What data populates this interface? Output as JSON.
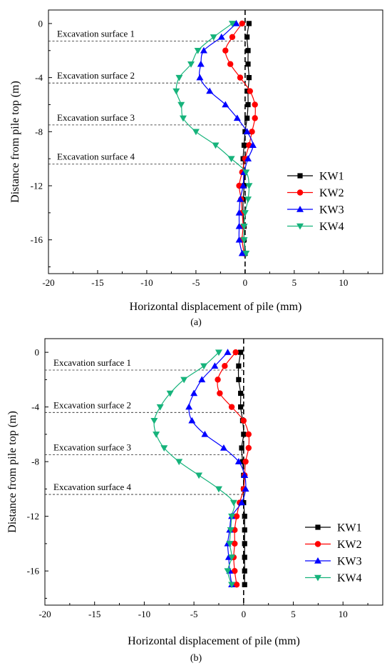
{
  "chart_data": [
    {
      "panel_label": "(a)",
      "type": "line",
      "xlabel": "Horizontal displacement of pile (mm)",
      "ylabel": "Distance from pile top (m)",
      "xlim": [
        -20,
        14
      ],
      "ylim": [
        -18.5,
        1
      ],
      "xticks": [
        -20,
        -15,
        -10,
        -5,
        0,
        5,
        10
      ],
      "yticks": [
        0,
        -4,
        -8,
        -12,
        -16
      ],
      "legend_position": "right-middle",
      "reference_line_x": 0,
      "excavation_surfaces": [
        {
          "label": "Excavation surface 1",
          "depth": -1.3
        },
        {
          "label": "Excavation surface 2",
          "depth": -4.4
        },
        {
          "label": "Excavation surface 3",
          "depth": -7.5
        },
        {
          "label": "Excavation surface 4",
          "depth": -10.4
        }
      ],
      "series": [
        {
          "name": "KW1",
          "marker": "square",
          "color": "#000000",
          "points": [
            [
              0.4,
              0
            ],
            [
              0.2,
              -1
            ],
            [
              0.3,
              -2
            ],
            [
              0.3,
              -3
            ],
            [
              0.4,
              -4
            ],
            [
              0.3,
              -5
            ],
            [
              0.3,
              -6
            ],
            [
              0.2,
              -7
            ],
            [
              0.0,
              -8
            ],
            [
              -0.1,
              -9
            ],
            [
              -0.2,
              -10
            ],
            [
              -0.1,
              -11
            ],
            [
              -0.1,
              -12
            ],
            [
              -0.2,
              -13
            ],
            [
              -0.2,
              -14
            ],
            [
              -0.1,
              -15
            ],
            [
              -0.1,
              -16
            ],
            [
              0.0,
              -17
            ]
          ]
        },
        {
          "name": "KW2",
          "marker": "circle",
          "color": "#ff0000",
          "points": [
            [
              -0.3,
              0
            ],
            [
              -1.3,
              -1
            ],
            [
              -2.0,
              -2
            ],
            [
              -1.5,
              -3
            ],
            [
              -0.5,
              -4
            ],
            [
              0.5,
              -5
            ],
            [
              1.0,
              -6
            ],
            [
              1.0,
              -7
            ],
            [
              0.7,
              -8
            ],
            [
              0.4,
              -9
            ],
            [
              0.0,
              -10
            ],
            [
              -0.3,
              -11
            ],
            [
              -0.6,
              -12
            ],
            [
              -0.4,
              -13
            ],
            [
              -0.3,
              -14
            ],
            [
              -0.2,
              -15
            ],
            [
              -0.3,
              -16
            ],
            [
              -0.1,
              -17
            ]
          ]
        },
        {
          "name": "KW3",
          "marker": "triangle-up",
          "color": "#0000ff",
          "points": [
            [
              -0.9,
              0
            ],
            [
              -2.4,
              -1
            ],
            [
              -4.2,
              -2
            ],
            [
              -4.5,
              -3
            ],
            [
              -4.6,
              -4
            ],
            [
              -3.6,
              -5
            ],
            [
              -2.0,
              -6
            ],
            [
              -0.8,
              -7
            ],
            [
              0.2,
              -8
            ],
            [
              0.8,
              -9
            ],
            [
              0.3,
              -10
            ],
            [
              -0.1,
              -11
            ],
            [
              -0.2,
              -12
            ],
            [
              -0.5,
              -13
            ],
            [
              -0.6,
              -14
            ],
            [
              -0.6,
              -15
            ],
            [
              -0.6,
              -16
            ],
            [
              -0.3,
              -17
            ]
          ]
        },
        {
          "name": "KW4",
          "marker": "triangle-down",
          "color": "#16b37b",
          "points": [
            [
              -1.3,
              0
            ],
            [
              -3.2,
              -1
            ],
            [
              -4.8,
              -2
            ],
            [
              -5.5,
              -3
            ],
            [
              -6.7,
              -4
            ],
            [
              -7.0,
              -5
            ],
            [
              -6.5,
              -6
            ],
            [
              -6.3,
              -7
            ],
            [
              -5.0,
              -8
            ],
            [
              -3.0,
              -9
            ],
            [
              -1.4,
              -10
            ],
            [
              0.1,
              -11
            ],
            [
              0.4,
              -12
            ],
            [
              0.3,
              -13
            ],
            [
              0.0,
              -14
            ],
            [
              -0.1,
              -15
            ],
            [
              -0.1,
              -16
            ],
            [
              0.1,
              -17
            ]
          ]
        }
      ]
    },
    {
      "panel_label": "(b)",
      "type": "line",
      "xlabel": "Horizontal displacement of pile (mm)",
      "ylabel": "Distance from pile top (m)",
      "xlim": [
        -20,
        14
      ],
      "ylim": [
        -18.5,
        1
      ],
      "xticks": [
        -20,
        -15,
        -10,
        -5,
        0,
        5,
        10
      ],
      "yticks": [
        0,
        -4,
        -8,
        -12,
        -16
      ],
      "legend_position": "bottom-right",
      "reference_line_x": 0,
      "excavation_surfaces": [
        {
          "label": "Excavation surface 1",
          "depth": -1.3
        },
        {
          "label": "Excavation surface 2",
          "depth": -4.4
        },
        {
          "label": "Excavation surface 3",
          "depth": -7.5
        },
        {
          "label": "Excavation surface 4",
          "depth": -10.4
        }
      ],
      "series": [
        {
          "name": "KW1",
          "marker": "square",
          "color": "#000000",
          "points": [
            [
              -0.3,
              0
            ],
            [
              -0.5,
              -1
            ],
            [
              -0.5,
              -2
            ],
            [
              -0.3,
              -3
            ],
            [
              -0.3,
              -4
            ],
            [
              -0.1,
              -5
            ],
            [
              0.0,
              -6
            ],
            [
              -0.2,
              -7
            ],
            [
              -0.1,
              -8
            ],
            [
              0.0,
              -9
            ],
            [
              0.0,
              -10
            ],
            [
              0.0,
              -11
            ],
            [
              0.1,
              -12
            ],
            [
              0.1,
              -13
            ],
            [
              0.1,
              -14
            ],
            [
              0.1,
              -15
            ],
            [
              0.1,
              -16
            ],
            [
              0.1,
              -17
            ]
          ]
        },
        {
          "name": "KW2",
          "marker": "circle",
          "color": "#ff0000",
          "points": [
            [
              -0.8,
              0
            ],
            [
              -1.9,
              -1
            ],
            [
              -2.6,
              -2
            ],
            [
              -2.4,
              -3
            ],
            [
              -1.2,
              -4
            ],
            [
              0.0,
              -5
            ],
            [
              0.5,
              -6
            ],
            [
              0.5,
              -7
            ],
            [
              0.2,
              -8
            ],
            [
              0.1,
              -9
            ],
            [
              0.0,
              -10
            ],
            [
              -0.4,
              -11
            ],
            [
              -0.7,
              -12
            ],
            [
              -0.9,
              -13
            ],
            [
              -0.9,
              -14
            ],
            [
              -1.0,
              -15
            ],
            [
              -0.9,
              -16
            ],
            [
              -0.7,
              -17
            ]
          ]
        },
        {
          "name": "KW3",
          "marker": "triangle-up",
          "color": "#0000ff",
          "points": [
            [
              -1.6,
              0
            ],
            [
              -2.9,
              -1
            ],
            [
              -4.2,
              -2
            ],
            [
              -5.0,
              -3
            ],
            [
              -5.5,
              -4
            ],
            [
              -5.2,
              -5
            ],
            [
              -3.9,
              -6
            ],
            [
              -2.0,
              -7
            ],
            [
              -0.5,
              -8
            ],
            [
              0.1,
              -9
            ],
            [
              0.2,
              -10
            ],
            [
              -0.2,
              -11
            ],
            [
              -1.2,
              -12
            ],
            [
              -1.4,
              -13
            ],
            [
              -1.6,
              -14
            ],
            [
              -1.5,
              -15
            ],
            [
              -1.4,
              -16
            ],
            [
              -1.2,
              -17
            ]
          ]
        },
        {
          "name": "KW4",
          "marker": "triangle-down",
          "color": "#16b37b",
          "points": [
            [
              -2.5,
              0
            ],
            [
              -4.0,
              -1
            ],
            [
              -6.0,
              -2
            ],
            [
              -7.4,
              -3
            ],
            [
              -8.4,
              -4
            ],
            [
              -9.0,
              -5
            ],
            [
              -8.8,
              -6
            ],
            [
              -8.0,
              -7
            ],
            [
              -6.5,
              -8
            ],
            [
              -4.5,
              -9
            ],
            [
              -2.5,
              -10
            ],
            [
              -1.0,
              -11
            ],
            [
              -1.2,
              -12
            ],
            [
              -1.3,
              -13
            ],
            [
              -1.4,
              -14
            ],
            [
              -1.2,
              -15
            ],
            [
              -1.6,
              -16
            ],
            [
              -1.2,
              -17
            ]
          ]
        }
      ]
    }
  ]
}
